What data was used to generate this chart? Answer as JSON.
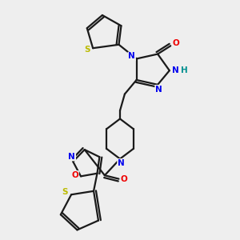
{
  "background_color": "#eeeeee",
  "bond_color": "#1a1a1a",
  "atom_colors": {
    "N": "#0000ee",
    "O": "#ee0000",
    "S": "#bbbb00",
    "H": "#009090",
    "C": "#1a1a1a"
  },
  "figsize": [
    3.0,
    3.0
  ],
  "dpi": 100
}
